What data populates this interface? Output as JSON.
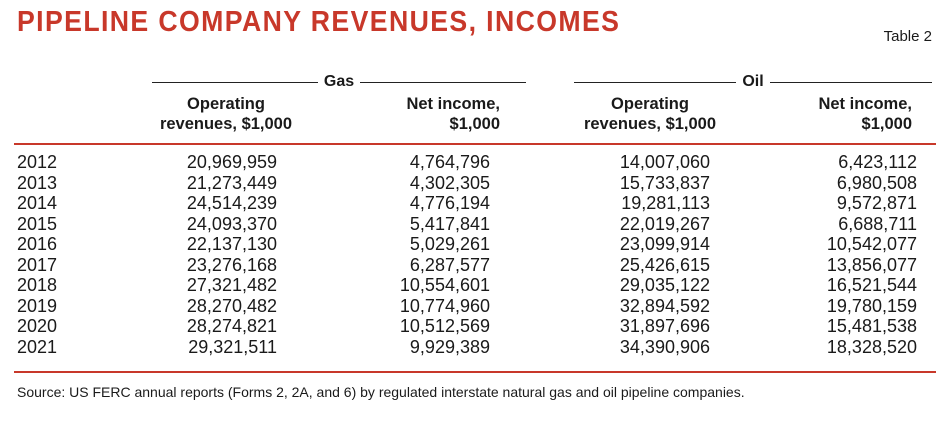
{
  "chart_data": {
    "type": "table",
    "title": "PIPELINE COMPANY REVENUES, INCOMES",
    "table_label": "Table 2",
    "groups": [
      "Gas",
      "Oil"
    ],
    "columns": [
      {
        "line1": "Operating",
        "line2": "revenues, $1,000"
      },
      {
        "line1": "Net income,",
        "line2": "$1,000"
      },
      {
        "line1": "Operating",
        "line2": "revenues, $1,000"
      },
      {
        "line1": "Net income,",
        "line2": "$1,000"
      }
    ],
    "rows": [
      {
        "year": "2012",
        "values": [
          "20,969,959",
          "4,764,796",
          "14,007,060",
          "6,423,112"
        ]
      },
      {
        "year": "2013",
        "values": [
          "21,273,449",
          "4,302,305",
          "15,733,837",
          "6,980,508"
        ]
      },
      {
        "year": "2014",
        "values": [
          "24,514,239",
          "4,776,194",
          "19,281,113",
          "9,572,871"
        ]
      },
      {
        "year": "2015",
        "values": [
          "24,093,370",
          "5,417,841",
          "22,019,267",
          "6,688,711"
        ]
      },
      {
        "year": "2016",
        "values": [
          "22,137,130",
          "5,029,261",
          "23,099,914",
          "10,542,077"
        ]
      },
      {
        "year": "2017",
        "values": [
          "23,276,168",
          "6,287,577",
          "25,426,615",
          "13,856,077"
        ]
      },
      {
        "year": "2018",
        "values": [
          "27,321,482",
          "10,554,601",
          "29,035,122",
          "16,521,544"
        ]
      },
      {
        "year": "2019",
        "values": [
          "28,270,482",
          "10,774,960",
          "32,894,592",
          "19,780,159"
        ]
      },
      {
        "year": "2020",
        "values": [
          "28,274,821",
          "10,512,569",
          "31,897,696",
          "15,481,538"
        ]
      },
      {
        "year": "2021",
        "values": [
          "29,321,511",
          "9,929,389",
          "34,390,906",
          "18,328,520"
        ]
      }
    ],
    "source": "Source: US FERC annual reports (Forms 2, 2A, and 6) by regulated interstate natural gas and oil pipeline companies.",
    "accent_color": "#c8382a"
  }
}
